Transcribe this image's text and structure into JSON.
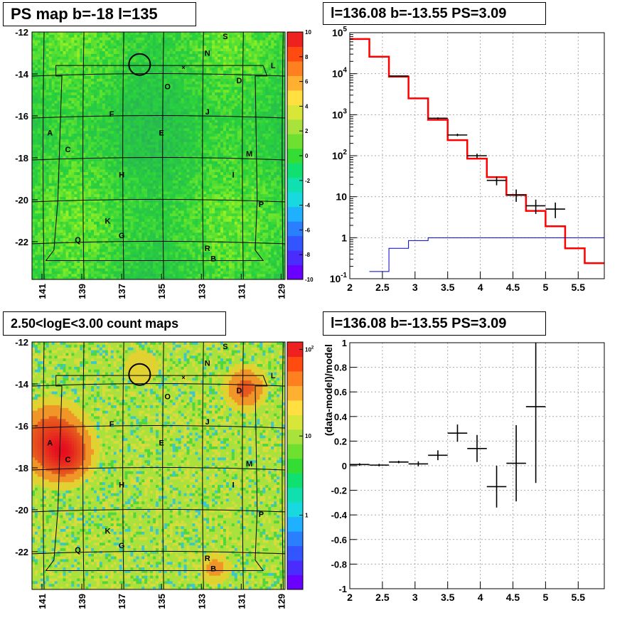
{
  "chart_data": [
    {
      "type": "heatmap",
      "title": "PS map b=-18 l=135",
      "x_ticks": [
        "141",
        "139",
        "137",
        "135",
        "133",
        "131",
        "129"
      ],
      "y_ticks": [
        "-12",
        "-14",
        "-16",
        "-18",
        "-20",
        "-22"
      ],
      "colorbar": {
        "scale": "linear",
        "ticks": [
          "10",
          "8",
          "6",
          "4",
          "2",
          "0",
          "-2",
          "-4",
          "-6",
          "-8",
          "-10"
        ],
        "range": [
          -10,
          10
        ]
      },
      "base_color": "#33dd33",
      "labels": [
        {
          "text": "S",
          "l": 131.8,
          "b": -12.2
        },
        {
          "text": "N",
          "l": 132.7,
          "b": -13.0
        },
        {
          "text": "L",
          "l": 129.4,
          "b": -13.6
        },
        {
          "text": "D",
          "l": 131.1,
          "b": -14.3
        },
        {
          "text": "O",
          "l": 134.7,
          "b": -14.6
        },
        {
          "text": "F",
          "l": 137.5,
          "b": -15.9
        },
        {
          "text": "J",
          "l": 132.7,
          "b": -15.8
        },
        {
          "text": "A",
          "l": 140.6,
          "b": -16.8
        },
        {
          "text": "E",
          "l": 135.0,
          "b": -16.8
        },
        {
          "text": "C",
          "l": 139.7,
          "b": -17.6
        },
        {
          "text": "M",
          "l": 130.6,
          "b": -17.8
        },
        {
          "text": "H",
          "l": 137.0,
          "b": -18.8
        },
        {
          "text": "I",
          "l": 131.4,
          "b": -18.8
        },
        {
          "text": "P",
          "l": 130.0,
          "b": -20.2
        },
        {
          "text": "K",
          "l": 137.7,
          "b": -21.0
        },
        {
          "text": "G",
          "l": 137.0,
          "b": -21.7
        },
        {
          "text": "Q",
          "l": 139.2,
          "b": -21.9
        },
        {
          "text": "R",
          "l": 132.7,
          "b": -22.3
        },
        {
          "text": "B",
          "l": 132.4,
          "b": -22.8
        }
      ],
      "circle": {
        "l": 136.1,
        "b": -13.55
      }
    },
    {
      "type": "line",
      "title": "l=136.08 b=-13.55 PS=3.09",
      "x_ticks": [
        "2",
        "2.5",
        "3",
        "3.5",
        "4",
        "4.5",
        "5",
        "5.5"
      ],
      "xlim": [
        2,
        5.9
      ],
      "y_scale": "log",
      "ylim": [
        0.1,
        100000
      ],
      "y_ticks": [
        "10^-1",
        "1",
        "10",
        "10^2",
        "10^3",
        "10^4",
        "10^5"
      ],
      "grid": true,
      "series": [
        {
          "color": "#ff0000",
          "values": [
            {
              "x0": 2.0,
              "x1": 2.3,
              "y": 70000
            },
            {
              "x0": 2.3,
              "x1": 2.6,
              "y": 26000
            },
            {
              "x0": 2.6,
              "x1": 2.9,
              "y": 8500
            },
            {
              "x0": 2.9,
              "x1": 3.2,
              "y": 2500
            },
            {
              "x0": 3.2,
              "x1": 3.5,
              "y": 750
            },
            {
              "x0": 3.5,
              "x1": 3.8,
              "y": 240
            },
            {
              "x0": 3.8,
              "x1": 4.1,
              "y": 85
            },
            {
              "x0": 4.1,
              "x1": 4.4,
              "y": 30
            },
            {
              "x0": 4.4,
              "x1": 4.7,
              "y": 11
            },
            {
              "x0": 4.7,
              "x1": 5.0,
              "y": 4.5
            },
            {
              "x0": 5.0,
              "x1": 5.3,
              "y": 1.9
            },
            {
              "x0": 5.3,
              "x1": 5.6,
              "y": 0.55
            },
            {
              "x0": 5.6,
              "x1": 5.9,
              "y": 0.24
            }
          ]
        },
        {
          "color": "#0000cc",
          "values": [
            {
              "x0": 2.3,
              "x1": 2.6,
              "y": 0.15
            },
            {
              "x0": 2.6,
              "x1": 2.9,
              "y": 0.55
            },
            {
              "x0": 2.9,
              "x1": 3.2,
              "y": 0.85
            },
            {
              "x0": 3.2,
              "x1": 3.5,
              "y": 1.0
            },
            {
              "x0": 3.5,
              "x1": 5.9,
              "y": 1.0
            }
          ]
        },
        {
          "color": "#000000",
          "values": [
            {
              "x": 2.75,
              "y": 8800,
              "ex": 0.15,
              "elo": 8600,
              "ehi": 9000
            },
            {
              "x": 3.35,
              "y": 820,
              "ex": 0.15,
              "elo": 780,
              "ehi": 860
            },
            {
              "x": 3.65,
              "y": 320,
              "ex": 0.15,
              "elo": 300,
              "ehi": 345
            },
            {
              "x": 3.95,
              "y": 100,
              "ex": 0.15,
              "elo": 88,
              "ehi": 112
            },
            {
              "x": 4.25,
              "y": 25,
              "ex": 0.15,
              "elo": 19,
              "ehi": 31
            },
            {
              "x": 4.55,
              "y": 11,
              "ex": 0.15,
              "elo": 7.5,
              "ehi": 15
            },
            {
              "x": 4.85,
              "y": 6,
              "ex": 0.15,
              "elo": 3.8,
              "ehi": 8.5
            },
            {
              "x": 5.15,
              "y": 5,
              "ex": 0.15,
              "elo": 3.0,
              "ehi": 7.2
            }
          ]
        }
      ]
    },
    {
      "type": "heatmap",
      "title": "2.50<logE<3.00 count maps",
      "x_ticks": [
        "141",
        "139",
        "137",
        "135",
        "133",
        "131",
        "129"
      ],
      "y_ticks": [
        "-12",
        "-14",
        "-16",
        "-18",
        "-20",
        "-22"
      ],
      "colorbar": {
        "scale": "log",
        "ticks": [
          "10^2",
          "10",
          "1"
        ]
      },
      "base_color": "#a8e23a",
      "hotspots": [
        {
          "l": 140.5,
          "b": -16.7,
          "r": 1.0,
          "strength": 1.0
        },
        {
          "l": 139.8,
          "b": -17.4,
          "r": 0.7,
          "strength": 0.9
        },
        {
          "l": 130.8,
          "b": -14.2,
          "r": 0.6,
          "strength": 0.7
        },
        {
          "l": 136.0,
          "b": -13.2,
          "r": 0.6,
          "strength": 0.25
        },
        {
          "l": 132.3,
          "b": -22.8,
          "r": 0.5,
          "strength": 0.35
        }
      ],
      "labels": [
        {
          "text": "S",
          "l": 131.8,
          "b": -12.2
        },
        {
          "text": "N",
          "l": 132.7,
          "b": -13.0
        },
        {
          "text": "L",
          "l": 129.4,
          "b": -13.6
        },
        {
          "text": "D",
          "l": 131.1,
          "b": -14.3
        },
        {
          "text": "O",
          "l": 134.7,
          "b": -14.6
        },
        {
          "text": "F",
          "l": 137.5,
          "b": -15.9
        },
        {
          "text": "J",
          "l": 132.7,
          "b": -15.8
        },
        {
          "text": "A",
          "l": 140.6,
          "b": -16.8
        },
        {
          "text": "E",
          "l": 135.0,
          "b": -16.8
        },
        {
          "text": "C",
          "l": 139.7,
          "b": -17.6
        },
        {
          "text": "M",
          "l": 130.6,
          "b": -17.8
        },
        {
          "text": "H",
          "l": 137.0,
          "b": -18.8
        },
        {
          "text": "I",
          "l": 131.4,
          "b": -18.8
        },
        {
          "text": "P",
          "l": 130.0,
          "b": -20.2
        },
        {
          "text": "K",
          "l": 137.7,
          "b": -21.0
        },
        {
          "text": "G",
          "l": 137.0,
          "b": -21.7
        },
        {
          "text": "Q",
          "l": 139.2,
          "b": -21.9
        },
        {
          "text": "R",
          "l": 132.7,
          "b": -22.3
        },
        {
          "text": "B",
          "l": 132.4,
          "b": -22.8
        }
      ],
      "circle": {
        "l": 136.1,
        "b": -13.55
      }
    },
    {
      "type": "scatter",
      "title": "l=136.08 b=-13.55 PS=3.09",
      "ylabel": "(data-model)/model",
      "x_ticks": [
        "2",
        "2.5",
        "3",
        "3.5",
        "4",
        "4.5",
        "5",
        "5.5"
      ],
      "y_ticks": [
        "1",
        "0.8",
        "0.6",
        "0.4",
        "0.2",
        "0",
        "-0.2",
        "-0.4",
        "-0.6",
        "-0.8",
        "-1"
      ],
      "xlim": [
        2,
        5.9
      ],
      "ylim": [
        -1,
        1
      ],
      "grid": true,
      "values": [
        {
          "x": 2.15,
          "y": 0.01,
          "ex": 0.15,
          "ey": 0.01
        },
        {
          "x": 2.45,
          "y": 0.005,
          "ex": 0.15,
          "ey": 0.01
        },
        {
          "x": 2.75,
          "y": 0.03,
          "ex": 0.15,
          "ey": 0.01
        },
        {
          "x": 3.05,
          "y": 0.015,
          "ex": 0.15,
          "ey": 0.02
        },
        {
          "x": 3.35,
          "y": 0.085,
          "ex": 0.15,
          "ey": 0.04
        },
        {
          "x": 3.65,
          "y": 0.265,
          "ex": 0.15,
          "ey": 0.07
        },
        {
          "x": 3.95,
          "y": 0.14,
          "ex": 0.15,
          "ey": 0.11
        },
        {
          "x": 4.25,
          "y": -0.17,
          "ex": 0.15,
          "ey": 0.17
        },
        {
          "x": 4.55,
          "y": 0.02,
          "ex": 0.15,
          "ey": 0.31
        },
        {
          "x": 4.85,
          "y": 0.48,
          "ex": 0.15,
          "ey": 0.62
        }
      ]
    }
  ]
}
